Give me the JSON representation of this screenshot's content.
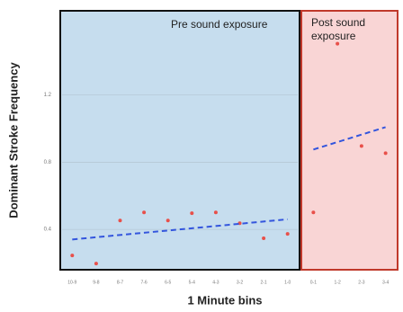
{
  "chart_data": [
    {
      "type": "scatter",
      "title": "Pre sound exposure",
      "ylabel": "Dominant Stroke Frequency",
      "xlabel": "1 Minute bins",
      "categories": [
        "10-9",
        "9-8",
        "8-7",
        "7-6",
        "6-5",
        "5-4",
        "4-3",
        "3-2",
        "2-1",
        "1-0"
      ],
      "values": [
        0.245,
        0.197,
        0.453,
        0.501,
        0.453,
        0.496,
        0.501,
        0.437,
        0.347,
        0.373
      ],
      "trend": [
        0.34,
        0.46
      ],
      "color": "#e8504a",
      "trend_color": "#3355dd",
      "background": "#c6ddee",
      "border": "#111111",
      "ylim": [
        0.16,
        1.7
      ],
      "yticks": [
        0.4,
        0.8,
        1.2
      ],
      "grid": true
    },
    {
      "type": "scatter",
      "title": "Post sound exposure",
      "categories": [
        "0-1",
        "1-2",
        "2-3",
        "3-4"
      ],
      "values": [
        0.501,
        1.504,
        0.896,
        0.853
      ],
      "trend": [
        0.875,
        1.008
      ],
      "color": "#e8504a",
      "trend_color": "#3355dd",
      "background": "#f9d5d5",
      "border": "#c0392b",
      "ylim": [
        0.16,
        1.7
      ]
    }
  ]
}
